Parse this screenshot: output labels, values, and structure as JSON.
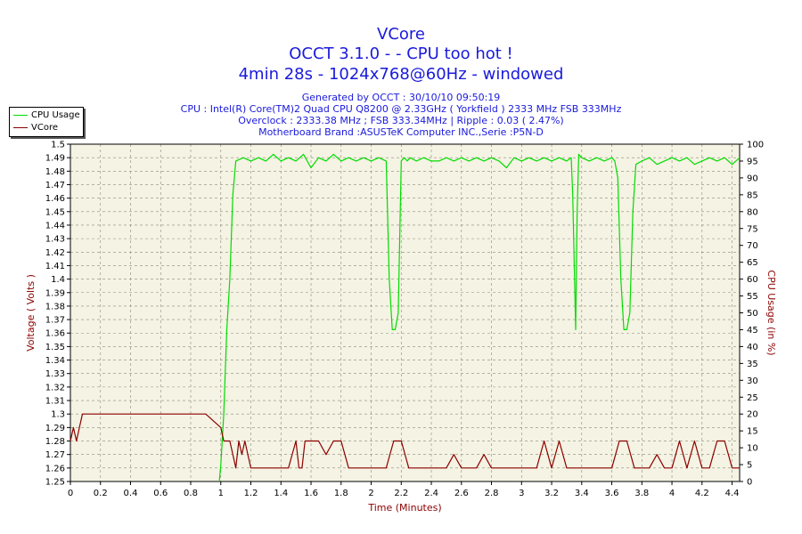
{
  "header": {
    "title": "VCore",
    "subtitle1": "OCCT 3.1.0 -  - CPU too hot !",
    "subtitle2": "4min 28s - 1024x768@60Hz - windowed",
    "info": [
      "Generated by OCCT : 30/10/10 09:50:19",
      "CPU : Intel(R) Core(TM)2 Quad CPU Q8200 @ 2.33GHz ( Yorkfield ) 2333 MHz FSB 333MHz",
      "Overclock : 2333.38 MHz ; FSB 333.34MHz | Ripple : 0.03 ( 2.47%)",
      "Motherboard Brand :ASUSTeK Computer INC.,Serie :P5N-D"
    ]
  },
  "legend": {
    "items": [
      {
        "label": "CPU Usage",
        "color": "#00dd00"
      },
      {
        "label": "VCore",
        "color": "#8b0000"
      }
    ]
  },
  "chart_data": {
    "type": "line",
    "title": "VCore",
    "xlabel": "Time (Minutes)",
    "ylabel": "Voltage ( Volts )",
    "y2label": "CPU Usage (in %)",
    "xlim": [
      0,
      4.45
    ],
    "ylim": [
      1.25,
      1.5
    ],
    "y2lim": [
      0,
      100
    ],
    "grid": true,
    "legend_position": "top-left",
    "background": "#f5f3e3",
    "x_ticks": [
      "0",
      "0.2",
      "0.4",
      "0.6",
      "0.8",
      "1",
      "1.2",
      "1.4",
      "1.6",
      "1.8",
      "2",
      "2.2",
      "2.4",
      "2.6",
      "2.8",
      "3",
      "3.2",
      "3.4",
      "3.6",
      "3.8",
      "4",
      "4.2",
      "4.4"
    ],
    "y_ticks": [
      "1.25",
      "1.26",
      "1.27",
      "1.28",
      "1.29",
      "1.3",
      "1.31",
      "1.32",
      "1.33",
      "1.34",
      "1.35",
      "1.36",
      "1.37",
      "1.38",
      "1.39",
      "1.4",
      "1.41",
      "1.42",
      "1.43",
      "1.44",
      "1.45",
      "1.46",
      "1.47",
      "1.48",
      "1.49",
      "1.5"
    ],
    "y2_ticks": [
      "0",
      "5",
      "10",
      "15",
      "20",
      "25",
      "30",
      "35",
      "40",
      "45",
      "50",
      "55",
      "60",
      "65",
      "70",
      "75",
      "80",
      "85",
      "90",
      "95",
      "100"
    ],
    "series": [
      {
        "name": "CPU Usage",
        "axis": "right",
        "color": "#00dd00",
        "x": [
          0.99,
          1.0,
          1.02,
          1.04,
          1.06,
          1.08,
          1.1,
          1.15,
          1.2,
          1.25,
          1.3,
          1.35,
          1.4,
          1.45,
          1.5,
          1.55,
          1.6,
          1.65,
          1.7,
          1.75,
          1.8,
          1.85,
          1.9,
          1.95,
          2.0,
          2.05,
          2.1,
          2.12,
          2.14,
          2.16,
          2.18,
          2.2,
          2.22,
          2.24,
          2.26,
          2.3,
          2.35,
          2.4,
          2.45,
          2.5,
          2.55,
          2.6,
          2.65,
          2.7,
          2.75,
          2.8,
          2.85,
          2.9,
          2.95,
          3.0,
          3.05,
          3.1,
          3.15,
          3.2,
          3.25,
          3.3,
          3.33,
          3.34,
          3.36,
          3.37,
          3.38,
          3.4,
          3.45,
          3.5,
          3.55,
          3.6,
          3.62,
          3.64,
          3.66,
          3.68,
          3.7,
          3.72,
          3.74,
          3.76,
          3.8,
          3.85,
          3.9,
          3.95,
          4.0,
          4.05,
          4.1,
          4.15,
          4.2,
          4.25,
          4.3,
          4.35,
          4.4,
          4.45
        ],
        "values": [
          0,
          5,
          20,
          45,
          60,
          85,
          95,
          96,
          95,
          96,
          95,
          97,
          95,
          96,
          95,
          97,
          93,
          96,
          95,
          97,
          95,
          96,
          95,
          96,
          95,
          96,
          95,
          60,
          45,
          45,
          50,
          95,
          96,
          95,
          96,
          95,
          96,
          95,
          95,
          96,
          95,
          96,
          95,
          96,
          95,
          96,
          95,
          93,
          96,
          95,
          96,
          95,
          96,
          95,
          96,
          95,
          96,
          85,
          45,
          80,
          97,
          96,
          95,
          96,
          95,
          96,
          95,
          90,
          60,
          45,
          45,
          50,
          80,
          94,
          95,
          96,
          94,
          95,
          96,
          95,
          96,
          94,
          95,
          96,
          95,
          96,
          94,
          96
        ]
      },
      {
        "name": "VCore",
        "axis": "left",
        "color": "#8b0000",
        "x": [
          0,
          0.02,
          0.04,
          0.06,
          0.08,
          0.1,
          0.15,
          0.2,
          0.3,
          0.4,
          0.5,
          0.6,
          0.7,
          0.8,
          0.9,
          1.0,
          1.02,
          1.04,
          1.06,
          1.08,
          1.1,
          1.12,
          1.14,
          1.16,
          1.18,
          1.2,
          1.22,
          1.24,
          1.26,
          1.28,
          1.3,
          1.4,
          1.45,
          1.5,
          1.52,
          1.54,
          1.56,
          1.6,
          1.65,
          1.7,
          1.75,
          1.8,
          1.85,
          1.9,
          1.95,
          2.0,
          2.05,
          2.1,
          2.15,
          2.2,
          2.25,
          2.3,
          2.35,
          2.4,
          2.45,
          2.5,
          2.55,
          2.6,
          2.65,
          2.7,
          2.75,
          2.8,
          2.85,
          2.9,
          2.95,
          3.0,
          3.05,
          3.1,
          3.15,
          3.2,
          3.25,
          3.3,
          3.35,
          3.4,
          3.45,
          3.5,
          3.55,
          3.6,
          3.65,
          3.7,
          3.75,
          3.8,
          3.85,
          3.9,
          3.95,
          4.0,
          4.05,
          4.1,
          4.15,
          4.2,
          4.25,
          4.3,
          4.35,
          4.4,
          4.45
        ],
        "values": [
          1.28,
          1.29,
          1.28,
          1.29,
          1.3,
          1.3,
          1.3,
          1.3,
          1.3,
          1.3,
          1.3,
          1.3,
          1.3,
          1.3,
          1.3,
          1.29,
          1.28,
          1.28,
          1.28,
          1.27,
          1.26,
          1.28,
          1.27,
          1.28,
          1.27,
          1.26,
          1.26,
          1.26,
          1.26,
          1.26,
          1.26,
          1.26,
          1.26,
          1.28,
          1.26,
          1.26,
          1.28,
          1.28,
          1.28,
          1.27,
          1.28,
          1.28,
          1.26,
          1.26,
          1.26,
          1.26,
          1.26,
          1.26,
          1.28,
          1.28,
          1.26,
          1.26,
          1.26,
          1.26,
          1.26,
          1.26,
          1.27,
          1.26,
          1.26,
          1.26,
          1.27,
          1.26,
          1.26,
          1.26,
          1.26,
          1.26,
          1.26,
          1.26,
          1.28,
          1.26,
          1.28,
          1.26,
          1.26,
          1.26,
          1.26,
          1.26,
          1.26,
          1.26,
          1.28,
          1.28,
          1.26,
          1.26,
          1.26,
          1.27,
          1.26,
          1.26,
          1.28,
          1.26,
          1.28,
          1.26,
          1.26,
          1.28,
          1.28,
          1.26,
          1.26
        ]
      }
    ]
  }
}
